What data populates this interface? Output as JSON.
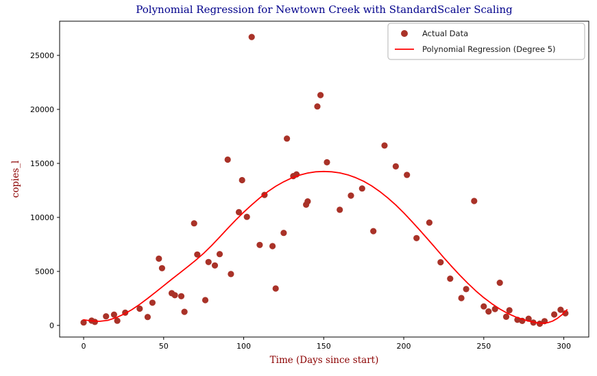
{
  "chart_data": {
    "type": "scatter",
    "title": "Polynomial Regression for Newtown Creek with StandardScaler Scaling",
    "xlabel": "Time (Days since start)",
    "ylabel": "copies_l",
    "x_ticks": [
      0,
      50,
      100,
      150,
      200,
      250,
      300
    ],
    "y_ticks": [
      0,
      5000,
      10000,
      15000,
      20000,
      25000
    ],
    "xlim": [
      -15.0,
      315.6
    ],
    "ylim": [
      -1076,
      28164
    ],
    "grid": false,
    "colors": {
      "title": "#00008B",
      "axis_labels": "#8B0000",
      "scatter": "#A93228",
      "line": "#FF0000",
      "spine": "#000000",
      "legend_border": "#b3b3b3"
    },
    "legend": {
      "position": "upper right",
      "entries": [
        {
          "label": "Actual Data",
          "marker": "dot",
          "color": "#A93228"
        },
        {
          "label": "Polynomial Regression (Degree 5)",
          "marker": "line",
          "color": "#FF0000"
        }
      ]
    },
    "series": [
      {
        "name": "Actual Data",
        "kind": "scatter",
        "color": "#A93228",
        "points": [
          [
            0,
            270
          ],
          [
            5,
            440
          ],
          [
            7,
            320
          ],
          [
            14,
            840
          ],
          [
            19,
            1000
          ],
          [
            21,
            430
          ],
          [
            26,
            1180
          ],
          [
            35,
            1550
          ],
          [
            40,
            780
          ],
          [
            43,
            2100
          ],
          [
            47,
            6180
          ],
          [
            49,
            5300
          ],
          [
            55,
            2980
          ],
          [
            57,
            2800
          ],
          [
            61,
            2700
          ],
          [
            63,
            1260
          ],
          [
            69,
            9450
          ],
          [
            71,
            6560
          ],
          [
            76,
            2340
          ],
          [
            78,
            5870
          ],
          [
            82,
            5550
          ],
          [
            85,
            6600
          ],
          [
            90,
            15350
          ],
          [
            92,
            4750
          ],
          [
            97,
            10480
          ],
          [
            99,
            13450
          ],
          [
            102,
            10050
          ],
          [
            105,
            26700
          ],
          [
            110,
            7450
          ],
          [
            113,
            12080
          ],
          [
            118,
            7340
          ],
          [
            120,
            3420
          ],
          [
            125,
            8560
          ],
          [
            127,
            17300
          ],
          [
            131,
            13820
          ],
          [
            133,
            13980
          ],
          [
            139,
            11180
          ],
          [
            140,
            11480
          ],
          [
            146,
            20270
          ],
          [
            148,
            21320
          ],
          [
            152,
            15100
          ],
          [
            160,
            10700
          ],
          [
            167,
            12020
          ],
          [
            174,
            12680
          ],
          [
            181,
            8730
          ],
          [
            188,
            16650
          ],
          [
            195,
            14720
          ],
          [
            202,
            13930
          ],
          [
            208,
            8080
          ],
          [
            216,
            9520
          ],
          [
            223,
            5850
          ],
          [
            229,
            4330
          ],
          [
            236,
            2530
          ],
          [
            239,
            3360
          ],
          [
            244,
            11520
          ],
          [
            250,
            1760
          ],
          [
            253,
            1290
          ],
          [
            257,
            1520
          ],
          [
            260,
            3950
          ],
          [
            264,
            800
          ],
          [
            266,
            1400
          ],
          [
            271,
            520
          ],
          [
            274,
            420
          ],
          [
            278,
            620
          ],
          [
            281,
            260
          ],
          [
            285,
            160
          ],
          [
            288,
            390
          ],
          [
            294,
            1010
          ],
          [
            298,
            1450
          ],
          [
            301,
            1120
          ]
        ]
      },
      {
        "name": "Polynomial Regression (Degree 5)",
        "kind": "line",
        "color": "#FF0000",
        "points": [
          [
            0,
            520
          ],
          [
            5,
            420
          ],
          [
            10,
            380
          ],
          [
            15,
            470
          ],
          [
            20,
            700
          ],
          [
            25,
            1030
          ],
          [
            30,
            1450
          ],
          [
            35,
            1950
          ],
          [
            40,
            2500
          ],
          [
            45,
            3080
          ],
          [
            50,
            3680
          ],
          [
            55,
            4270
          ],
          [
            60,
            4850
          ],
          [
            65,
            5430
          ],
          [
            70,
            6030
          ],
          [
            75,
            6680
          ],
          [
            80,
            7400
          ],
          [
            85,
            8180
          ],
          [
            90,
            8980
          ],
          [
            95,
            9750
          ],
          [
            100,
            10480
          ],
          [
            105,
            11160
          ],
          [
            110,
            11800
          ],
          [
            115,
            12380
          ],
          [
            120,
            12880
          ],
          [
            125,
            13300
          ],
          [
            130,
            13650
          ],
          [
            135,
            13920
          ],
          [
            140,
            14110
          ],
          [
            145,
            14220
          ],
          [
            150,
            14250
          ],
          [
            155,
            14220
          ],
          [
            160,
            14120
          ],
          [
            165,
            13940
          ],
          [
            170,
            13680
          ],
          [
            175,
            13340
          ],
          [
            180,
            12910
          ],
          [
            185,
            12400
          ],
          [
            190,
            11810
          ],
          [
            195,
            11150
          ],
          [
            200,
            10420
          ],
          [
            205,
            9640
          ],
          [
            210,
            8820
          ],
          [
            215,
            7980
          ],
          [
            220,
            7130
          ],
          [
            225,
            6280
          ],
          [
            230,
            5450
          ],
          [
            235,
            4650
          ],
          [
            240,
            3900
          ],
          [
            245,
            3200
          ],
          [
            250,
            2570
          ],
          [
            255,
            2010
          ],
          [
            260,
            1520
          ],
          [
            265,
            1110
          ],
          [
            270,
            780
          ],
          [
            275,
            520
          ],
          [
            280,
            330
          ],
          [
            284,
            230
          ],
          [
            287,
            200
          ],
          [
            290,
            250
          ],
          [
            293,
            400
          ],
          [
            296,
            650
          ],
          [
            299,
            1000
          ],
          [
            302,
            1450
          ]
        ]
      }
    ]
  }
}
